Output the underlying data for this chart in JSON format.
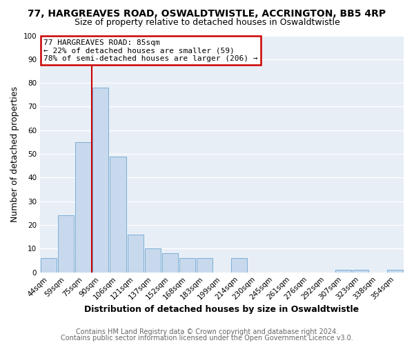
{
  "title": "77, HARGREAVES ROAD, OSWALDTWISTLE, ACCRINGTON, BB5 4RP",
  "subtitle": "Size of property relative to detached houses in Oswaldtwistle",
  "xlabel": "Distribution of detached houses by size in Oswaldtwistle",
  "ylabel": "Number of detached properties",
  "bar_labels": [
    "44sqm",
    "59sqm",
    "75sqm",
    "90sqm",
    "106sqm",
    "121sqm",
    "137sqm",
    "152sqm",
    "168sqm",
    "183sqm",
    "199sqm",
    "214sqm",
    "230sqm",
    "245sqm",
    "261sqm",
    "276sqm",
    "292sqm",
    "307sqm",
    "323sqm",
    "338sqm",
    "354sqm"
  ],
  "bar_values": [
    6,
    24,
    55,
    78,
    49,
    16,
    10,
    8,
    6,
    6,
    0,
    6,
    0,
    0,
    0,
    0,
    0,
    1,
    1,
    0,
    1
  ],
  "bar_color": "#c8d9ed",
  "bar_edge_color": "#7aaed6",
  "ylim": [
    0,
    100
  ],
  "yticks": [
    0,
    10,
    20,
    30,
    40,
    50,
    60,
    70,
    80,
    90,
    100
  ],
  "property_line_label": "77 HARGREAVES ROAD: 85sqm",
  "annotation_line1": "← 22% of detached houses are smaller (59)",
  "annotation_line2": "78% of semi-detached houses are larger (206) →",
  "annotation_box_color": "#ffffff",
  "annotation_box_edge_color": "#cc0000",
  "vline_color": "#cc0000",
  "footer1": "Contains HM Land Registry data © Crown copyright and database right 2024.",
  "footer2": "Contains public sector information licensed under the Open Government Licence v3.0.",
  "bg_color": "#ffffff",
  "plot_bg_color": "#e8eef6",
  "title_fontsize": 10,
  "subtitle_fontsize": 9,
  "axis_label_fontsize": 9,
  "tick_fontsize": 7.5,
  "annotation_fontsize": 8,
  "footer_fontsize": 7,
  "vline_x": 2.5
}
